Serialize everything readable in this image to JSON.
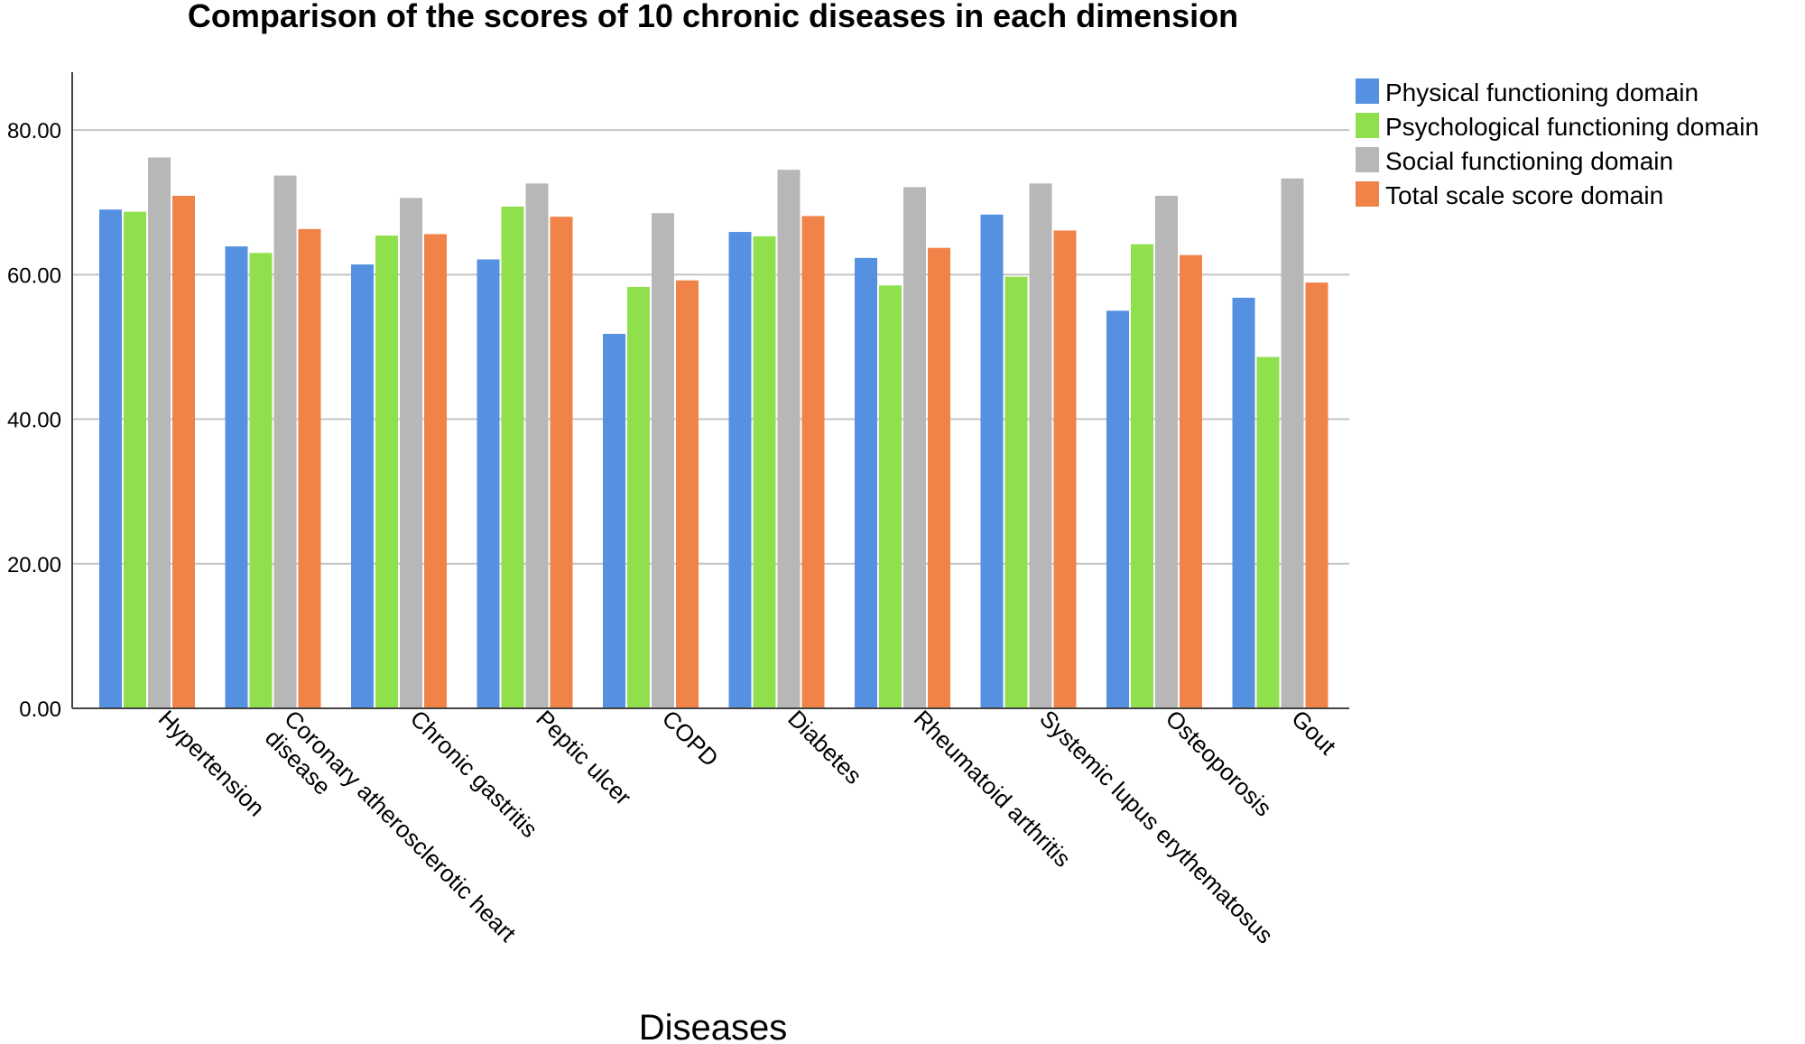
{
  "chart_data": {
    "type": "bar",
    "title": "Comparison of the scores of 10 chronic diseases in each dimension",
    "xlabel": "Diseases",
    "ylabel": "",
    "ylim": [
      0,
      88
    ],
    "yticks": [
      "0.00",
      "20.00",
      "40.00",
      "60.00",
      "80.00"
    ],
    "grid": true,
    "legend_position": "top-right",
    "categories": [
      [
        "Hypertension"
      ],
      [
        "Coronary atherosclerotic heart",
        "disease"
      ],
      [
        "Chronic gastritis"
      ],
      [
        "Peptic ulcer"
      ],
      [
        "COPD"
      ],
      [
        "Diabetes"
      ],
      [
        "Rheumatoid arthritis"
      ],
      [
        "Systemic lupus erythematosus"
      ],
      [
        "Osteoporosis"
      ],
      [
        "Gout"
      ]
    ],
    "series": [
      {
        "name": "Physical functioning domain",
        "color": "#5591e0",
        "values": [
          69.0,
          63.9,
          61.4,
          62.1,
          51.8,
          65.9,
          62.3,
          68.3,
          55.0,
          56.8
        ]
      },
      {
        "name": "Psychological functioning domain",
        "color": "#90df4c",
        "values": [
          68.7,
          63.0,
          65.4,
          69.4,
          58.3,
          65.3,
          58.5,
          59.7,
          64.2,
          48.6
        ]
      },
      {
        "name": "Social functioning domain",
        "color": "#b7b7b7",
        "values": [
          76.2,
          73.7,
          70.6,
          72.6,
          68.5,
          74.5,
          72.1,
          72.6,
          70.9,
          73.3
        ]
      },
      {
        "name": "Total scale score domain",
        "color": "#f08347",
        "values": [
          70.9,
          66.3,
          65.6,
          68.0,
          59.2,
          68.1,
          63.7,
          66.1,
          62.7,
          58.9
        ]
      }
    ]
  }
}
